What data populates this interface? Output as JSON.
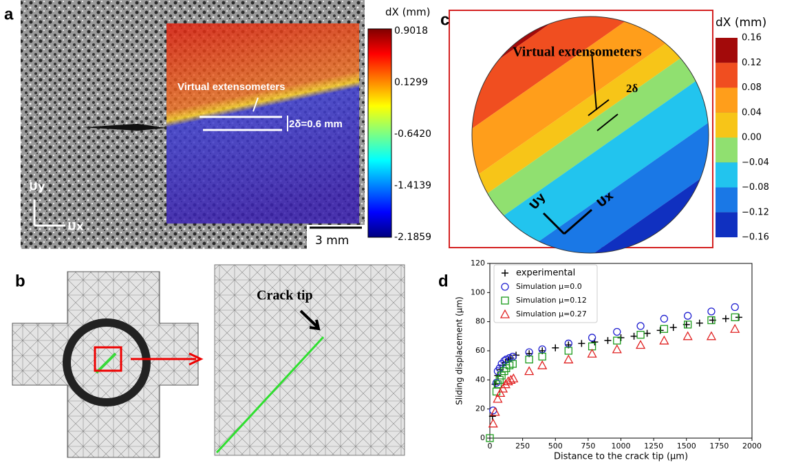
{
  "figure": {
    "panel_labels": [
      "a",
      "b",
      "c",
      "d"
    ],
    "panel_a": {
      "colorbar_title": "dX (mm)",
      "colorbar_labels": [
        "0.9018",
        "0.1299",
        "-0.6420",
        "-1.4139",
        "-2.1859"
      ],
      "annotation": "Virtual extensometers",
      "gap_label": "2δ=0.6 mm",
      "axis_y": "Uy",
      "axis_x": "Ux",
      "scale_bar": "3 mm"
    },
    "panel_b": {
      "annotation": "Crack tip"
    },
    "panel_c": {
      "colorbar_title": "dX (mm)",
      "colorbar_labels": [
        "0.16",
        "0.12",
        "0.08",
        "0.04",
        "0.00",
        "−0.04",
        "−0.08",
        "−0.12",
        "−0.16"
      ],
      "annotation": "Virtual extensometers",
      "gap_label": "2δ",
      "axis_y": "Uy",
      "axis_x": "Ux"
    }
  },
  "chart_data": {
    "type": "scatter",
    "x_label": "Distance to the crack tip (μm)",
    "y_label": "Sliding displacement (μm)",
    "xlim": [
      0,
      2000
    ],
    "ylim": [
      0,
      120
    ],
    "xticks": [
      0,
      250,
      500,
      750,
      1000,
      1250,
      1500,
      1750,
      2000
    ],
    "yticks": [
      0,
      20,
      40,
      60,
      80,
      100,
      120
    ],
    "legend": "upper left",
    "series": [
      {
        "name": "experimental",
        "color": "#000000",
        "marker": "plus",
        "x": [
          20,
          40,
          60,
          80,
          100,
          120,
          140,
          160,
          200,
          300,
          400,
          500,
          600,
          700,
          800,
          900,
          1000,
          1100,
          1200,
          1300,
          1400,
          1500,
          1600,
          1700,
          1800,
          1900
        ],
        "values": [
          15,
          37,
          43,
          47,
          50,
          52,
          54,
          55,
          57,
          58,
          60,
          62,
          64,
          65,
          66,
          67,
          69,
          70,
          72,
          74,
          76,
          78,
          79,
          81,
          82,
          83
        ]
      },
      {
        "name": "Simulation μ=0.0",
        "color": "#1f1fd0",
        "marker": "circle",
        "x": [
          25,
          50,
          60,
          75,
          90,
          110,
          125,
          150,
          175,
          300,
          400,
          600,
          780,
          970,
          1150,
          1330,
          1510,
          1690,
          1870
        ],
        "values": [
          19,
          38,
          46,
          48,
          51,
          53,
          54,
          55,
          56,
          59,
          61,
          65,
          69,
          73,
          77,
          82,
          84,
          87,
          90
        ]
      },
      {
        "name": "Simulation μ=0.12",
        "color": "#1a9a1a",
        "marker": "square",
        "x": [
          0,
          50,
          60,
          75,
          90,
          110,
          125,
          150,
          175,
          300,
          400,
          600,
          780,
          970,
          1150,
          1330,
          1510,
          1690,
          1870
        ],
        "values": [
          0,
          32,
          37,
          40,
          43,
          46,
          48,
          50,
          51,
          54,
          56,
          60,
          63,
          67,
          71,
          75,
          78,
          81,
          83
        ]
      },
      {
        "name": "Simulation μ=0.27",
        "color": "#e02020",
        "marker": "triangle",
        "x": [
          25,
          40,
          60,
          80,
          100,
          120,
          140,
          160,
          180,
          300,
          400,
          600,
          780,
          970,
          1150,
          1330,
          1510,
          1690,
          1870
        ],
        "values": [
          10,
          18,
          27,
          31,
          34,
          37,
          39,
          40,
          41,
          46,
          50,
          54,
          58,
          61,
          64,
          67,
          70,
          70,
          75
        ]
      }
    ]
  }
}
